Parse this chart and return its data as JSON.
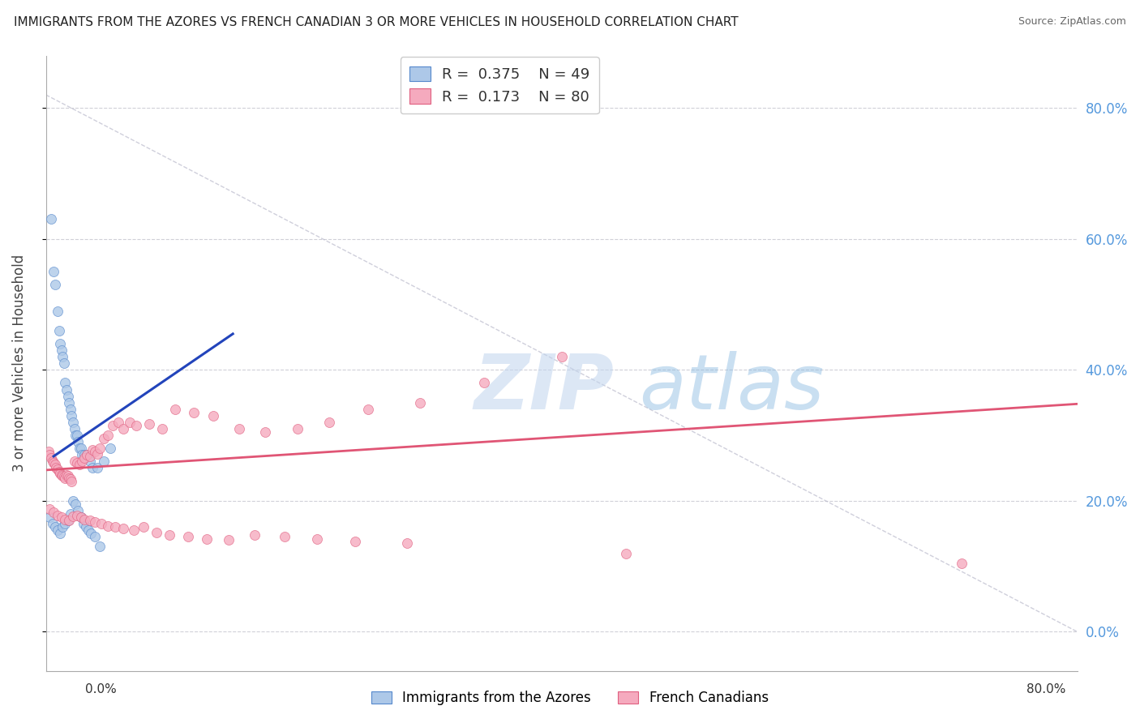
{
  "title": "IMMIGRANTS FROM THE AZORES VS FRENCH CANADIAN 3 OR MORE VEHICLES IN HOUSEHOLD CORRELATION CHART",
  "source": "Source: ZipAtlas.com",
  "ylabel": "3 or more Vehicles in Household",
  "ytick_values": [
    0.0,
    0.2,
    0.4,
    0.6,
    0.8
  ],
  "xlim": [
    0.0,
    0.8
  ],
  "ylim": [
    -0.06,
    0.88
  ],
  "r_azores": "0.375",
  "n_azores": "49",
  "r_french": "0.173",
  "n_french": "80",
  "color_azores_fill": "#adc8e8",
  "color_azores_edge": "#5588cc",
  "color_french_fill": "#f5aabe",
  "color_french_edge": "#e06080",
  "color_line_azores": "#2244bb",
  "color_line_french": "#e05575",
  "color_diag": "#bbbbcc",
  "color_grid": "#d0d0d8",
  "color_right_ticks": "#5599dd",
  "background": "#ffffff",
  "watermark_zip": "ZIP",
  "watermark_atlas": "atlas",
  "marker_size": 75,
  "azores_x": [
    0.004,
    0.006,
    0.007,
    0.009,
    0.01,
    0.011,
    0.012,
    0.013,
    0.014,
    0.015,
    0.016,
    0.017,
    0.018,
    0.019,
    0.02,
    0.021,
    0.022,
    0.023,
    0.024,
    0.025,
    0.026,
    0.027,
    0.028,
    0.03,
    0.032,
    0.034,
    0.036,
    0.04,
    0.045,
    0.05,
    0.003,
    0.005,
    0.007,
    0.009,
    0.011,
    0.013,
    0.015,
    0.017,
    0.019,
    0.021,
    0.023,
    0.025,
    0.027,
    0.029,
    0.031,
    0.033,
    0.035,
    0.038,
    0.042
  ],
  "azores_y": [
    0.63,
    0.55,
    0.53,
    0.49,
    0.46,
    0.44,
    0.43,
    0.42,
    0.41,
    0.38,
    0.37,
    0.36,
    0.35,
    0.34,
    0.33,
    0.32,
    0.31,
    0.3,
    0.3,
    0.29,
    0.28,
    0.28,
    0.27,
    0.27,
    0.27,
    0.26,
    0.25,
    0.25,
    0.26,
    0.28,
    0.175,
    0.165,
    0.16,
    0.155,
    0.15,
    0.16,
    0.165,
    0.17,
    0.18,
    0.2,
    0.195,
    0.185,
    0.175,
    0.165,
    0.16,
    0.155,
    0.15,
    0.145,
    0.13
  ],
  "french_x": [
    0.002,
    0.003,
    0.004,
    0.005,
    0.006,
    0.007,
    0.008,
    0.009,
    0.01,
    0.011,
    0.012,
    0.013,
    0.014,
    0.015,
    0.016,
    0.017,
    0.018,
    0.019,
    0.02,
    0.022,
    0.024,
    0.026,
    0.028,
    0.03,
    0.032,
    0.034,
    0.036,
    0.038,
    0.04,
    0.042,
    0.045,
    0.048,
    0.052,
    0.056,
    0.06,
    0.065,
    0.07,
    0.08,
    0.09,
    0.1,
    0.115,
    0.13,
    0.15,
    0.17,
    0.195,
    0.22,
    0.25,
    0.29,
    0.34,
    0.4,
    0.003,
    0.006,
    0.009,
    0.012,
    0.015,
    0.018,
    0.021,
    0.024,
    0.027,
    0.03,
    0.034,
    0.038,
    0.043,
    0.048,
    0.054,
    0.06,
    0.068,
    0.076,
    0.086,
    0.096,
    0.11,
    0.125,
    0.142,
    0.162,
    0.185,
    0.21,
    0.24,
    0.28,
    0.45,
    0.71
  ],
  "french_y": [
    0.275,
    0.27,
    0.265,
    0.26,
    0.258,
    0.255,
    0.25,
    0.248,
    0.245,
    0.242,
    0.24,
    0.238,
    0.237,
    0.235,
    0.24,
    0.238,
    0.235,
    0.233,
    0.23,
    0.26,
    0.258,
    0.255,
    0.26,
    0.265,
    0.27,
    0.268,
    0.278,
    0.275,
    0.272,
    0.28,
    0.295,
    0.3,
    0.315,
    0.32,
    0.31,
    0.32,
    0.315,
    0.318,
    0.31,
    0.34,
    0.335,
    0.33,
    0.31,
    0.305,
    0.31,
    0.32,
    0.34,
    0.35,
    0.38,
    0.42,
    0.188,
    0.182,
    0.178,
    0.175,
    0.172,
    0.17,
    0.176,
    0.178,
    0.175,
    0.172,
    0.17,
    0.168,
    0.165,
    0.162,
    0.16,
    0.158,
    0.155,
    0.16,
    0.152,
    0.148,
    0.145,
    0.142,
    0.14,
    0.148,
    0.145,
    0.142,
    0.138,
    0.135,
    0.12,
    0.105
  ],
  "azores_line_x": [
    0.006,
    0.145
  ],
  "azores_line_y": [
    0.268,
    0.455
  ],
  "french_line_x": [
    0.0,
    0.8
  ],
  "french_line_y": [
    0.247,
    0.348
  ]
}
